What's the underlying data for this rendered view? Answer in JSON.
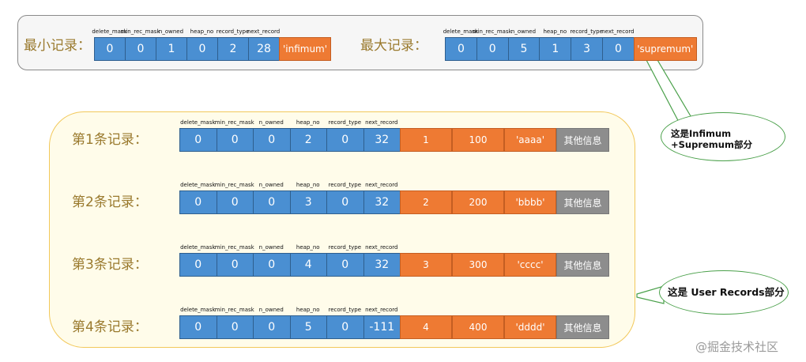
{
  "headers": [
    "delete_mask",
    "min_rec_mask",
    "n_owned",
    "heap_no",
    "record_type",
    "next_record"
  ],
  "system_records": {
    "min": {
      "label": "最小记录：",
      "values": [
        "0",
        "0",
        "1",
        "0",
        "2",
        "28"
      ],
      "data": "'infimum'"
    },
    "max": {
      "label": "最大记录：",
      "values": [
        "0",
        "0",
        "5",
        "1",
        "3",
        "0"
      ],
      "data": "'supremum'"
    }
  },
  "user_records": [
    {
      "label": "第1条记录：",
      "values": [
        "0",
        "0",
        "0",
        "2",
        "0",
        "32"
      ],
      "data": [
        "1",
        "100",
        "'aaaa'"
      ],
      "other": "其他信息"
    },
    {
      "label": "第2条记录：",
      "values": [
        "0",
        "0",
        "0",
        "3",
        "0",
        "32"
      ],
      "data": [
        "2",
        "200",
        "'bbbb'"
      ],
      "other": "其他信息"
    },
    {
      "label": "第3条记录：",
      "values": [
        "0",
        "0",
        "0",
        "4",
        "0",
        "32"
      ],
      "data": [
        "3",
        "300",
        "'cccc'"
      ],
      "other": "其他信息"
    },
    {
      "label": "第4条记录：",
      "values": [
        "0",
        "0",
        "0",
        "5",
        "0",
        "-111"
      ],
      "data": [
        "4",
        "400",
        "'dddd'"
      ],
      "other": "其他信息"
    }
  ],
  "callouts": {
    "system": "这是Infimum +Supremum部分",
    "user": "这是 User Records部分"
  },
  "watermark": "@掘金技术社区",
  "colors": {
    "field_blue": "#4a8fd2",
    "data_orange": "#ee7a33",
    "other_gray": "#8d8d8d"
  }
}
